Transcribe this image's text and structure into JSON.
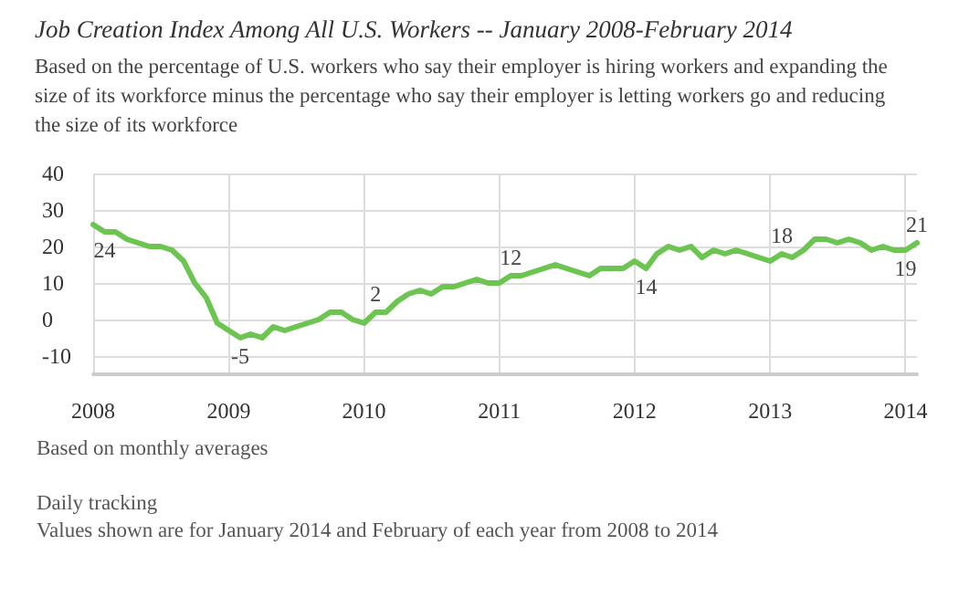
{
  "chart_data": {
    "type": "line",
    "title": "Job Creation Index Among All U.S. Workers -- January 2008-February 2014",
    "subtitle": "Based on the percentage of U.S. workers who say their employer is hiring workers and expanding the size of its workforce minus the percentage who say their employer is letting workers go and reducing the size of its workforce",
    "annotations": [
      "Based on monthly averages",
      "Daily tracking",
      "Values shown are for January 2014 and February of each year from 2008 to 2014"
    ],
    "x": [
      "2008-01",
      "2008-02",
      "2008-03",
      "2008-04",
      "2008-05",
      "2008-06",
      "2008-07",
      "2008-08",
      "2008-09",
      "2008-10",
      "2008-11",
      "2008-12",
      "2009-01",
      "2009-02",
      "2009-03",
      "2009-04",
      "2009-05",
      "2009-06",
      "2009-07",
      "2009-08",
      "2009-09",
      "2009-10",
      "2009-11",
      "2009-12",
      "2010-01",
      "2010-02",
      "2010-03",
      "2010-04",
      "2010-05",
      "2010-06",
      "2010-07",
      "2010-08",
      "2010-09",
      "2010-10",
      "2010-11",
      "2010-12",
      "2011-01",
      "2011-02",
      "2011-03",
      "2011-04",
      "2011-05",
      "2011-06",
      "2011-07",
      "2011-08",
      "2011-09",
      "2011-10",
      "2011-11",
      "2011-12",
      "2012-01",
      "2012-02",
      "2012-03",
      "2012-04",
      "2012-05",
      "2012-06",
      "2012-07",
      "2012-08",
      "2012-09",
      "2012-10",
      "2012-11",
      "2012-12",
      "2013-01",
      "2013-02",
      "2013-03",
      "2013-04",
      "2013-05",
      "2013-06",
      "2013-07",
      "2013-08",
      "2013-09",
      "2013-10",
      "2013-11",
      "2013-12",
      "2014-01",
      "2014-02"
    ],
    "series": [
      {
        "color": "#6cc551",
        "values": [
          26,
          24,
          24,
          22,
          21,
          20,
          20,
          19,
          16,
          10,
          6,
          -1,
          -3,
          -5,
          -4,
          -5,
          -2,
          -3,
          -2,
          -1,
          0,
          2,
          2,
          0,
          -1,
          2,
          2,
          5,
          7,
          8,
          7,
          9,
          9,
          10,
          11,
          10,
          10,
          12,
          12,
          13,
          14,
          15,
          14,
          13,
          12,
          14,
          14,
          14,
          16,
          14,
          18,
          20,
          19,
          20,
          17,
          19,
          18,
          19,
          18,
          17,
          16,
          18,
          17,
          19,
          22,
          22,
          21,
          22,
          21,
          19,
          20,
          19,
          19,
          21
        ],
        "value_labels": [
          null,
          "24",
          null,
          null,
          null,
          null,
          null,
          null,
          null,
          null,
          null,
          null,
          null,
          "-5",
          null,
          null,
          null,
          null,
          null,
          null,
          null,
          null,
          null,
          null,
          null,
          "2",
          null,
          null,
          null,
          null,
          null,
          null,
          null,
          null,
          null,
          null,
          null,
          "12",
          null,
          null,
          null,
          null,
          null,
          null,
          null,
          null,
          null,
          null,
          null,
          "14",
          null,
          null,
          null,
          null,
          null,
          null,
          null,
          null,
          null,
          null,
          null,
          "18",
          null,
          null,
          null,
          null,
          null,
          null,
          null,
          null,
          null,
          null,
          "19",
          "21"
        ]
      }
    ],
    "xlim": [
      "2008-01",
      "2014-02"
    ],
    "xticks": [
      "2008",
      "2009",
      "2010",
      "2011",
      "2012",
      "2013",
      "2014"
    ],
    "ylim": [
      -15,
      40
    ],
    "yticks": [
      -10,
      0,
      10,
      20,
      30,
      40
    ],
    "grid": true,
    "marker": "none",
    "line_style": "solid"
  }
}
